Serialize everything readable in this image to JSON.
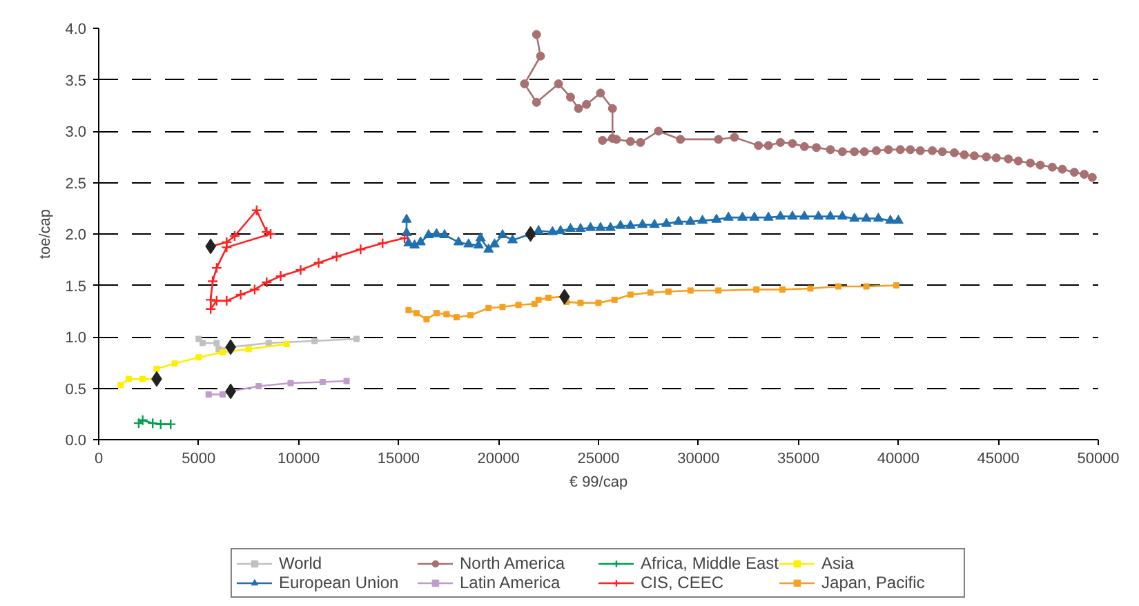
{
  "chart_data": {
    "type": "line",
    "xlabel": "€ 99/cap",
    "ylabel": "toe/cap",
    "xlim": [
      0,
      50000
    ],
    "ylim": [
      0,
      4
    ],
    "xticks": [
      0,
      5000,
      10000,
      15000,
      20000,
      25000,
      30000,
      35000,
      40000,
      45000,
      50000
    ],
    "yticks": [
      {
        "value": 0,
        "label": "0.0"
      },
      {
        "value": 0.5,
        "label": "0.5"
      },
      {
        "value": 1,
        "label": "1.0"
      },
      {
        "value": 1.5,
        "label": "1.5"
      },
      {
        "value": 2,
        "label": "2.0"
      },
      {
        "value": 2.5,
        "label": "2.5"
      },
      {
        "value": 3,
        "label": "3.0"
      },
      {
        "value": 3.5,
        "label": "3.5"
      },
      {
        "value": 4,
        "label": "4.0"
      }
    ],
    "grid": "y",
    "legend": "bottom",
    "line_style": "solid",
    "series": [
      {
        "name": "World",
        "color": "#c0c0c0",
        "marker": "square",
        "x": [
          5000,
          5200,
          5900,
          6000,
          6600,
          8500,
          10800,
          12900
        ],
        "values": [
          0.98,
          0.94,
          0.94,
          0.88,
          0.9,
          0.94,
          0.96,
          0.98
        ]
      },
      {
        "name": "European Union",
        "color": "#2070b0",
        "marker": "triangle",
        "x": [
          15400,
          15400,
          15500,
          15800,
          16100,
          16500,
          16900,
          17300,
          18000,
          18500,
          19000,
          19100,
          19500,
          19800,
          20200,
          20700,
          21600,
          22000,
          22700,
          23100,
          23600,
          24100,
          24600,
          25100,
          25600,
          26100,
          26600,
          27200,
          27800,
          28400,
          29000,
          29600,
          30200,
          30900,
          31500,
          32200,
          32800,
          33500,
          34100,
          34700,
          35300,
          36000,
          36600,
          37200,
          37800,
          38400,
          39000,
          39600,
          40000
        ],
        "values": [
          2.14,
          2.01,
          1.91,
          1.89,
          1.92,
          1.99,
          2.0,
          1.99,
          1.92,
          1.9,
          1.89,
          1.96,
          1.85,
          1.9,
          1.99,
          1.94,
          2.0,
          2.03,
          2.02,
          2.03,
          2.05,
          2.05,
          2.06,
          2.06,
          2.06,
          2.08,
          2.08,
          2.09,
          2.09,
          2.1,
          2.12,
          2.12,
          2.13,
          2.14,
          2.16,
          2.16,
          2.16,
          2.16,
          2.17,
          2.17,
          2.17,
          2.17,
          2.17,
          2.17,
          2.15,
          2.15,
          2.15,
          2.13,
          2.13
        ]
      },
      {
        "name": "North America",
        "color": "#a87070",
        "marker": "circle",
        "x": [
          21900,
          22100,
          21300,
          21900,
          23000,
          23600,
          24000,
          24400,
          25100,
          25700,
          25700,
          25200,
          25900,
          26600,
          27100,
          28000,
          29100,
          31000,
          31800,
          33000,
          33500,
          34100,
          34700,
          35300,
          35900,
          36600,
          37200,
          37800,
          38300,
          38900,
          39500,
          40100,
          40600,
          41100,
          41700,
          42200,
          42800,
          43300,
          43800,
          44400,
          44900,
          45500,
          46000,
          46600,
          47100,
          47700,
          48200,
          48800,
          49300,
          49700
        ],
        "values": [
          3.94,
          3.73,
          3.46,
          3.28,
          3.46,
          3.33,
          3.22,
          3.26,
          3.37,
          3.22,
          2.93,
          2.91,
          2.92,
          2.9,
          2.89,
          3.0,
          2.92,
          2.92,
          2.94,
          2.86,
          2.86,
          2.89,
          2.88,
          2.85,
          2.84,
          2.82,
          2.8,
          2.8,
          2.8,
          2.81,
          2.82,
          2.82,
          2.82,
          2.81,
          2.81,
          2.8,
          2.79,
          2.77,
          2.76,
          2.75,
          2.74,
          2.73,
          2.71,
          2.69,
          2.67,
          2.65,
          2.63,
          2.6,
          2.58,
          2.55
        ]
      },
      {
        "name": "Latin America",
        "color": "#c09ccc",
        "marker": "square",
        "x": [
          5500,
          6200,
          6600,
          8000,
          9600,
          11200,
          12400
        ],
        "values": [
          0.44,
          0.44,
          0.47,
          0.52,
          0.55,
          0.56,
          0.57
        ]
      },
      {
        "name": "Africa, Middle East",
        "color": "#00a050",
        "marker": "cross",
        "x": [
          2000,
          2200,
          2700,
          3100,
          3600
        ],
        "values": [
          0.16,
          0.19,
          0.16,
          0.15,
          0.15
        ]
      },
      {
        "name": "CIS, CEEC",
        "color": "#ff2020",
        "marker": "cross",
        "x": [
          5600,
          6400,
          6800,
          7900,
          8400,
          8600,
          6400,
          5900,
          5700,
          5600,
          5600,
          5900,
          6400,
          7100,
          7800,
          8400,
          9100,
          10100,
          11000,
          11900,
          13100,
          14200,
          15300
        ],
        "values": [
          1.88,
          1.92,
          1.98,
          2.23,
          2.02,
          2.0,
          1.87,
          1.67,
          1.54,
          1.36,
          1.27,
          1.35,
          1.35,
          1.41,
          1.46,
          1.53,
          1.59,
          1.65,
          1.72,
          1.78,
          1.85,
          1.91,
          1.96
        ]
      },
      {
        "name": "Asia",
        "color": "#ffee00",
        "marker": "square",
        "x": [
          1100,
          1500,
          2200,
          2900,
          2900,
          3800,
          5000,
          6200,
          7500,
          9400
        ],
        "values": [
          0.53,
          0.59,
          0.59,
          0.59,
          0.69,
          0.74,
          0.8,
          0.85,
          0.88,
          0.93
        ]
      },
      {
        "name": "Japan, Pacific",
        "color": "#f5a020",
        "marker": "square",
        "x": [
          15500,
          15900,
          16400,
          16900,
          17400,
          17900,
          18600,
          19500,
          20200,
          21000,
          21800,
          22000,
          22500,
          23300,
          23400,
          24100,
          25000,
          25800,
          26600,
          27600,
          28500,
          29600,
          31000,
          32900,
          34200,
          35600,
          37000,
          38400,
          39900
        ],
        "values": [
          1.26,
          1.23,
          1.17,
          1.23,
          1.22,
          1.19,
          1.21,
          1.28,
          1.29,
          1.31,
          1.32,
          1.36,
          1.38,
          1.39,
          1.34,
          1.33,
          1.33,
          1.36,
          1.41,
          1.43,
          1.44,
          1.45,
          1.45,
          1.46,
          1.46,
          1.47,
          1.49,
          1.49,
          1.5
        ]
      },
      {
        "type": "scatter",
        "color": "#222222",
        "marker": "diamond",
        "x": [
          5600,
          6600,
          2900,
          6600,
          21600,
          23300
        ],
        "values": [
          1.88,
          0.9,
          0.59,
          0.47,
          2.0,
          1.39
        ]
      }
    ]
  }
}
